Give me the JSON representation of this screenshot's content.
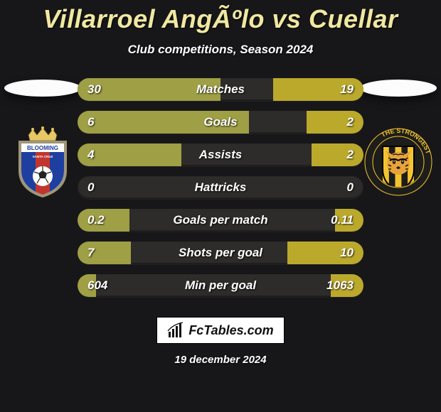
{
  "background_color": "#17171a",
  "text_color": "#ffffff",
  "title_color": "#f0e8a0",
  "title": "Villarroel AngÃºlo vs Cuellar",
  "subtitle": "Club competitions, Season 2024",
  "date": "19 december 2024",
  "brand": {
    "label": "FcTables.com"
  },
  "left": {
    "ellipse_fill": "#fcfcfc",
    "crest": {
      "type": "shield",
      "crown_color": "#e8c766",
      "shield_colors": [
        "#1e3fa0",
        "#c0362f",
        "#1e3fa0"
      ],
      "outline": "#9e9678",
      "ball_color": "#ffffff",
      "text": "BLOOMING",
      "banner_bg": "#ffffff",
      "banner_text_color": "#1e3fa0",
      "sub_text": "SANTA CRUZ"
    }
  },
  "right": {
    "ellipse_fill": "#fcfcfc",
    "crest": {
      "type": "badge",
      "bg": "#1d1d1b",
      "ring_text_color": "#f4c430",
      "ring_text": "THE STRONGEST",
      "stripes": [
        "#f4c430",
        "#1d1d1b",
        "#f4c430",
        "#1d1d1b",
        "#f4c430"
      ],
      "tiger_main": "#e8a33a",
      "tiger_stripe": "#1d1d1b",
      "tiger_eye": "#ffffff"
    }
  },
  "stats": {
    "track_color": "#2d2c2a",
    "left_fill_color": "#9f9f45",
    "right_fill_color": "#bba92c",
    "label_color": "#ffffff",
    "value_color": "#ffffff",
    "rows": [
      {
        "label": "Matches",
        "left_val": "30",
        "right_val": "19",
        "left_pct": 50.0,
        "right_pct": 31.7
      },
      {
        "label": "Goals",
        "left_val": "6",
        "right_val": "2",
        "left_pct": 60.0,
        "right_pct": 20.0
      },
      {
        "label": "Assists",
        "left_val": "4",
        "right_val": "2",
        "left_pct": 36.4,
        "right_pct": 18.2
      },
      {
        "label": "Hattricks",
        "left_val": "0",
        "right_val": "0",
        "left_pct": 0.0,
        "right_pct": 0.0
      },
      {
        "label": "Goals per match",
        "left_val": "0.2",
        "right_val": "0.11",
        "left_pct": 18.2,
        "right_pct": 10.0
      },
      {
        "label": "Shots per goal",
        "left_val": "7",
        "right_val": "10",
        "left_pct": 18.6,
        "right_pct": 26.6
      },
      {
        "label": "Min per goal",
        "left_val": "604",
        "right_val": "1063",
        "left_pct": 6.5,
        "right_pct": 11.5
      }
    ]
  }
}
